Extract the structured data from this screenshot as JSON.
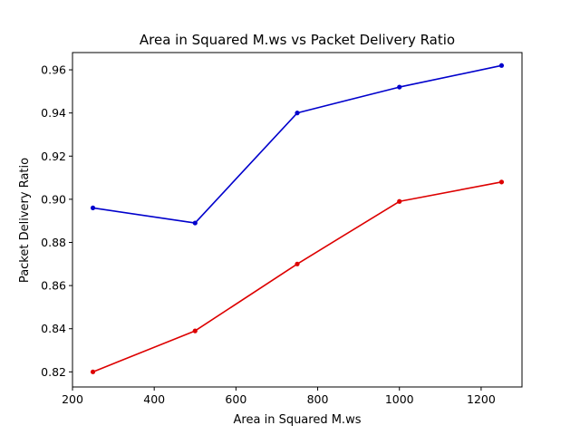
{
  "chart_data": {
    "type": "line",
    "title": "Area in Squared M.ws vs Packet Delivery Ratio",
    "xlabel": "Area in Squared M.ws",
    "ylabel": "Packet Delivery Ratio",
    "x": [
      250,
      500,
      750,
      1000,
      1250
    ],
    "xlim": [
      200,
      1300
    ],
    "ylim": [
      0.813,
      0.968
    ],
    "xticks": [
      200,
      400,
      600,
      800,
      1000,
      1200
    ],
    "xtick_labels": [
      "200",
      "400",
      "600",
      "800",
      "1000",
      "1200"
    ],
    "yticks": [
      0.82,
      0.84,
      0.86,
      0.88,
      0.9,
      0.92,
      0.94,
      0.96
    ],
    "ytick_labels": [
      "0.82",
      "0.84",
      "0.86",
      "0.88",
      "0.90",
      "0.92",
      "0.94",
      "0.96"
    ],
    "grid": false,
    "series": [
      {
        "color": "#0000cc",
        "values": [
          0.896,
          0.889,
          0.94,
          0.952,
          0.962
        ]
      },
      {
        "color": "#dd0000",
        "values": [
          0.82,
          0.839,
          0.87,
          0.899,
          0.908
        ]
      }
    ]
  }
}
